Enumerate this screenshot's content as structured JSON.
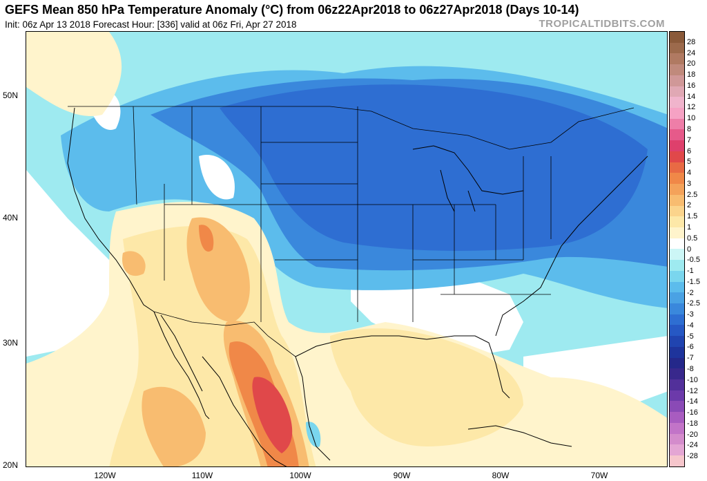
{
  "header": {
    "title": "GEFS Mean 850 hPa Temperature Anomaly (°C) from 06z22Apr2018 to 06z27Apr2018 (Days 10-14)",
    "subtitle": "Init: 06z Apr 13 2018   Forecast Hour: [336]   valid at 06z Fri, Apr 27 2018",
    "brand": "TROPICALTIDBITS.COM"
  },
  "axes": {
    "lat_labels": [
      "50N",
      "40N",
      "30N",
      "20N"
    ],
    "lon_labels": [
      "120W",
      "110W",
      "100W",
      "90W",
      "80W",
      "70W"
    ]
  },
  "colorbar": {
    "labels": [
      "28",
      "24",
      "20",
      "18",
      "16",
      "14",
      "12",
      "10",
      "8",
      "7",
      "6",
      "5",
      "4",
      "3",
      "2.5",
      "2",
      "1.5",
      "1",
      "0.5",
      "0",
      "-0.5",
      "-1",
      "-1.5",
      "-2",
      "-2.5",
      "-3",
      "-4",
      "-5",
      "-6",
      "-7",
      "-8",
      "-10",
      "-12",
      "-14",
      "-16",
      "-18",
      "-20",
      "-24",
      "-28"
    ],
    "colors": [
      "#8a5a3a",
      "#9c6a4c",
      "#b07a62",
      "#c08a7c",
      "#d09898",
      "#e0a8b4",
      "#f0b4cc",
      "#f6a2c4",
      "#ee7ea8",
      "#e65a8a",
      "#de406c",
      "#e0484a",
      "#e86a44",
      "#f08848",
      "#f4a25a",
      "#f8bc70",
      "#fbd48c",
      "#fde8a8",
      "#fff4cc",
      "#ffffff",
      "#ccf6f6",
      "#9eeaf0",
      "#7ad6ee",
      "#5cbcec",
      "#4aa2e4",
      "#3a88dc",
      "#2e6ed2",
      "#2658c4",
      "#2044b0",
      "#1e349c",
      "#24288a",
      "#38288c",
      "#52309a",
      "#6c3aaa",
      "#8a4ab6",
      "#a85cc0",
      "#c274c8",
      "#d48ccc",
      "#e4a6d4",
      "#f6c6cc"
    ]
  },
  "map": {
    "region": "Continental United States, Mexico and Caribbean",
    "colors": {
      "weak_cold": "#9eeaf0",
      "mod_cold": "#5cbcec",
      "cold": "#3a88dc",
      "strong_cold": "#2e6ed2",
      "neutral": "#ffffff",
      "weak_warm": "#fff4cc",
      "warm": "#fde8a8",
      "warmer": "#f8bc70",
      "hot": "#f08848",
      "very_hot": "#e0484a"
    }
  }
}
